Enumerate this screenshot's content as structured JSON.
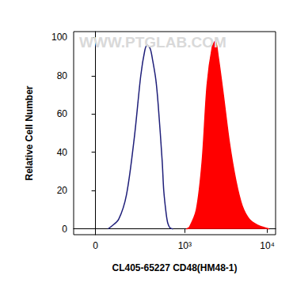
{
  "chart_data": {
    "type": "line",
    "xlabel": "CL405-65227 CD48(HM48-1)",
    "ylabel": "Relative Cell Number",
    "annotations": [
      "WWW.PTGLAB.COM"
    ],
    "log": "x",
    "grid": false,
    "xlim": [
      -80,
      12500
    ],
    "xticks": [
      0,
      {
        "value": 1000,
        "label": "10³"
      },
      {
        "value": 10000,
        "label": "10⁴"
      }
    ],
    "ylim": [
      -3,
      103
    ],
    "yticks": [
      0,
      20,
      40,
      60,
      80,
      100
    ],
    "series": [
      {
        "type": "line",
        "color": "#1f1f7a",
        "x": [
          40,
          50,
          86,
          130,
          184,
          237,
          275,
          300,
          335,
          364,
          405,
          438,
          500,
          525,
          567,
          597,
          641,
          700
        ],
        "values": [
          0,
          1,
          5,
          18,
          48,
          80,
          93,
          96,
          94,
          88,
          78,
          65,
          35,
          20,
          8,
          3,
          0.5,
          0
        ]
      },
      {
        "type": "area",
        "color": "#ff0000",
        "x": [
          1050,
          1150,
          1400,
          1650,
          1900,
          2200,
          2400,
          2600,
          3000,
          3550,
          4250,
          5050,
          6150,
          7650,
          9500,
          10500
        ],
        "values": [
          0,
          1,
          10,
          35,
          75,
          95,
          98,
          90,
          70,
          45,
          25,
          12,
          5,
          2,
          0.5,
          0
        ]
      }
    ]
  }
}
